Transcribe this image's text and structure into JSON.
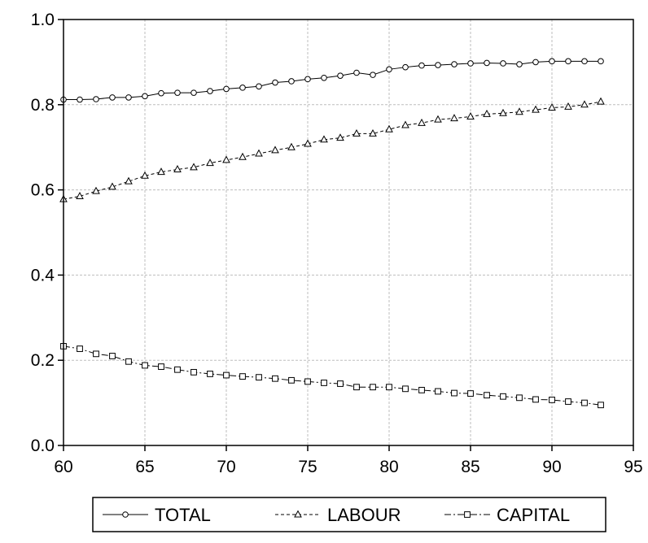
{
  "chart_data": {
    "type": "line",
    "title": "",
    "xlabel": "",
    "ylabel": "",
    "xlim": [
      60,
      95
    ],
    "ylim": [
      0.0,
      1.0
    ],
    "xticks": [
      60,
      65,
      70,
      75,
      80,
      85,
      90,
      95
    ],
    "xtick_labels": [
      "60",
      "65",
      "70",
      "75",
      "80",
      "85",
      "90",
      "95"
    ],
    "yticks": [
      0.0,
      0.2,
      0.4,
      0.6,
      0.8,
      1.0
    ],
    "ytick_labels": [
      "0.0",
      "0.2",
      "0.4",
      "0.6",
      "0.8",
      "1.0"
    ],
    "grid": true,
    "legend_position": "bottom-center",
    "x": [
      60,
      61,
      62,
      63,
      64,
      65,
      66,
      67,
      68,
      69,
      70,
      71,
      72,
      73,
      74,
      75,
      76,
      77,
      78,
      79,
      80,
      81,
      82,
      83,
      84,
      85,
      86,
      87,
      88,
      89,
      90,
      91,
      92,
      93
    ],
    "series": [
      {
        "name": "TOTAL",
        "line_style": "solid",
        "marker": "circle",
        "values": [
          0.812,
          0.812,
          0.813,
          0.817,
          0.817,
          0.82,
          0.827,
          0.828,
          0.828,
          0.832,
          0.837,
          0.84,
          0.843,
          0.852,
          0.855,
          0.86,
          0.863,
          0.868,
          0.875,
          0.87,
          0.883,
          0.888,
          0.892,
          0.893,
          0.895,
          0.897,
          0.898,
          0.897,
          0.895,
          0.9,
          0.902,
          0.902,
          0.902,
          0.902
        ]
      },
      {
        "name": "LABOUR",
        "line_style": "dashed",
        "marker": "triangle",
        "values": [
          0.578,
          0.585,
          0.597,
          0.607,
          0.62,
          0.633,
          0.642,
          0.648,
          0.653,
          0.663,
          0.67,
          0.677,
          0.685,
          0.693,
          0.7,
          0.708,
          0.718,
          0.722,
          0.732,
          0.732,
          0.742,
          0.752,
          0.757,
          0.765,
          0.768,
          0.772,
          0.778,
          0.78,
          0.783,
          0.788,
          0.793,
          0.795,
          0.8,
          0.807
        ]
      },
      {
        "name": "CAPITAL",
        "line_style": "dashdot",
        "marker": "square",
        "values": [
          0.233,
          0.227,
          0.215,
          0.21,
          0.197,
          0.188,
          0.185,
          0.178,
          0.172,
          0.168,
          0.165,
          0.162,
          0.16,
          0.157,
          0.153,
          0.15,
          0.147,
          0.145,
          0.137,
          0.137,
          0.137,
          0.133,
          0.13,
          0.127,
          0.123,
          0.122,
          0.118,
          0.115,
          0.112,
          0.108,
          0.107,
          0.103,
          0.1,
          0.095
        ]
      }
    ]
  }
}
